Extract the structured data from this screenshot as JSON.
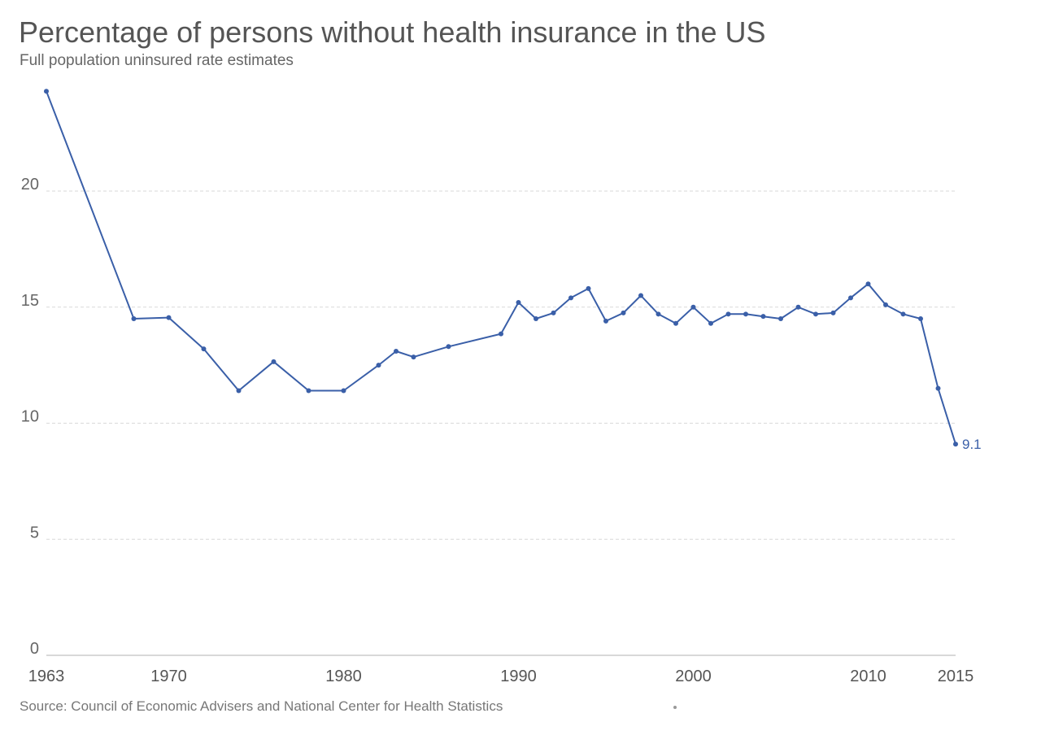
{
  "header": {
    "title": "Percentage of persons without health insurance in the US",
    "subtitle": "Full population uninsured rate estimates"
  },
  "footer": {
    "source": "Source: Council of Economic Advisers and National Center for Health Statistics"
  },
  "chart_data": {
    "type": "line",
    "title": "Percentage of persons without health insurance in the US",
    "subtitle": "Full population uninsured rate estimates",
    "xlabel": "",
    "ylabel": "",
    "xlim": [
      1963,
      2015
    ],
    "ylim": [
      0,
      25
    ],
    "x_ticks": [
      1963,
      1970,
      1980,
      1990,
      2000,
      2010,
      2015
    ],
    "y_ticks": [
      0,
      5,
      10,
      15,
      20
    ],
    "grid": true,
    "line_color": "#3a5fa8",
    "series": [
      {
        "x": [
          1963,
          1968,
          1970,
          1972,
          1974,
          1976,
          1978,
          1980,
          1982,
          1983,
          1984,
          1986,
          1989,
          1990,
          1991,
          1992,
          1993,
          1994,
          1995,
          1996,
          1997,
          1998,
          1999,
          2000,
          2001,
          2002,
          2003,
          2004,
          2005,
          2006,
          2007,
          2008,
          2009,
          2010,
          2011,
          2012,
          2013,
          2014,
          2015
        ],
        "values": [
          24.3,
          14.5,
          14.55,
          13.2,
          11.4,
          12.65,
          11.4,
          11.4,
          12.5,
          13.1,
          12.85,
          13.3,
          13.85,
          15.2,
          14.5,
          14.75,
          15.4,
          15.8,
          14.4,
          14.75,
          15.5,
          14.7,
          14.3,
          15.0,
          14.3,
          14.7,
          14.7,
          14.6,
          14.5,
          15.0,
          14.7,
          14.75,
          15.4,
          16.0,
          15.1,
          14.7,
          14.5,
          11.5,
          9.1
        ]
      }
    ],
    "annotations": [
      {
        "x": 2015,
        "y": 9.1,
        "label": "9.1"
      }
    ]
  }
}
